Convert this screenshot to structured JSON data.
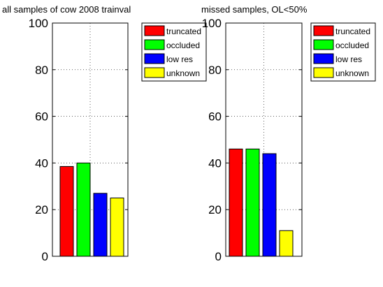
{
  "chart_data": [
    {
      "type": "bar",
      "title": "all samples of cow 2008 trainval",
      "categories": [
        "truncated",
        "occluded",
        "low res",
        "unknown"
      ],
      "values": [
        38.5,
        40,
        27,
        25
      ],
      "colors": [
        "#ff0000",
        "#00ff00",
        "#0000ff",
        "#ffff00"
      ],
      "ylim": [
        0,
        100
      ],
      "yticks": [
        "0",
        "20",
        "40",
        "60",
        "80",
        "100"
      ],
      "grid": true,
      "legend": "top-right",
      "xlabel": "",
      "ylabel": ""
    },
    {
      "type": "bar",
      "title": "missed samples,  OL<50%",
      "categories": [
        "truncated",
        "occluded",
        "low res",
        "unknown"
      ],
      "values": [
        46,
        46,
        44,
        11
      ],
      "colors": [
        "#ff0000",
        "#00ff00",
        "#0000ff",
        "#ffff00"
      ],
      "ylim": [
        0,
        100
      ],
      "yticks": [
        "0",
        "20",
        "40",
        "60",
        "80",
        "100"
      ],
      "grid": true,
      "legend": "top-right",
      "xlabel": "",
      "ylabel": ""
    }
  ]
}
